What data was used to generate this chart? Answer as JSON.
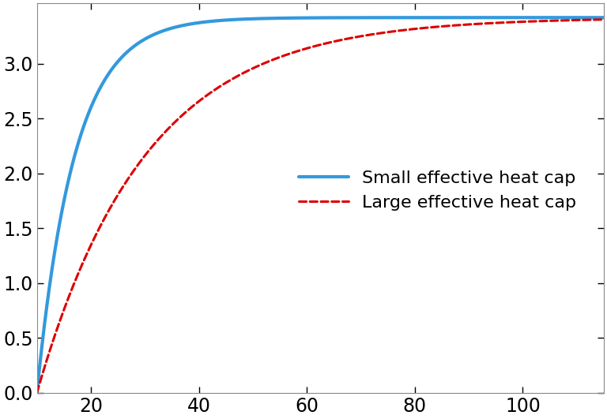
{
  "title": "",
  "xlabel": "",
  "ylabel": "",
  "xlim": [
    10,
    115
  ],
  "ylim": [
    0,
    3.55
  ],
  "x_ticks": [
    20,
    40,
    60,
    80,
    100
  ],
  "y_ticks": [
    0.0,
    0.5,
    1.0,
    1.5,
    2.0,
    2.5,
    3.0
  ],
  "T_eq": 3.42,
  "tau_small": 7.0,
  "tau_large": 20.0,
  "x_start": 10,
  "color_small": "#3399dd",
  "color_large": "#dd0000",
  "legend_small": "Small effective heat cap",
  "legend_large": "Large effective heat cap",
  "lw_small": 3.0,
  "lw_large": 2.2,
  "figure_bg": "#ffffff",
  "axes_bg": "#ffffff",
  "tick_color": "#000000",
  "spine_color": "#888888",
  "tick_fontsize": 17,
  "legend_fontsize": 16
}
